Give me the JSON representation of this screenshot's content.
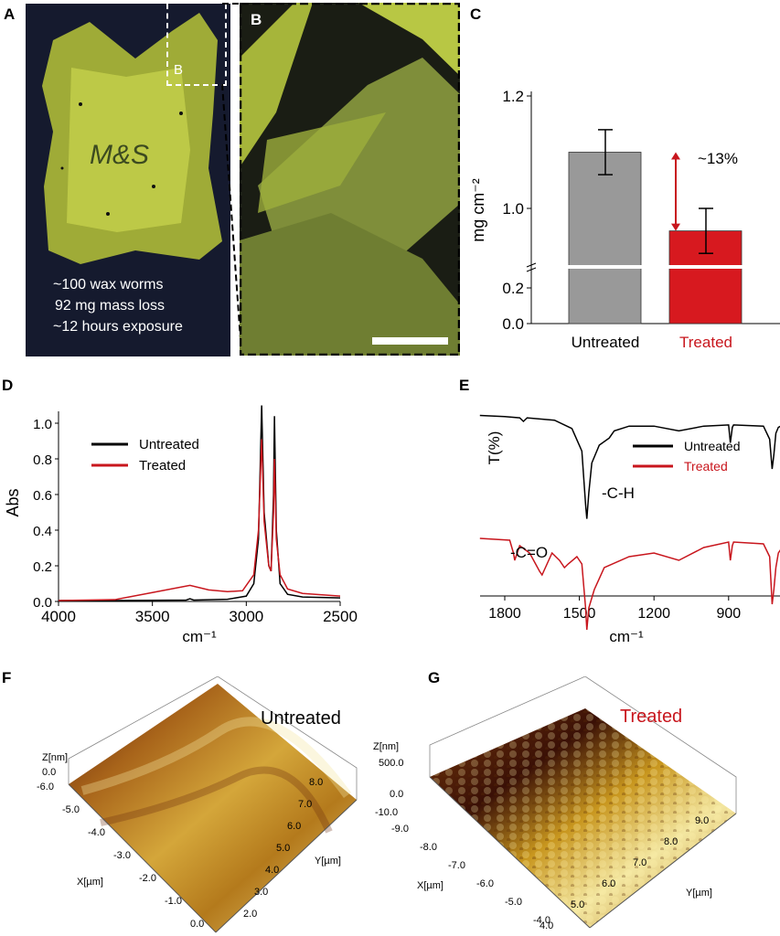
{
  "panels": {
    "A": {
      "label": "A",
      "inset_label": "B",
      "lines": [
        "~100 wax worms",
        "92 mg mass loss",
        "~12 hours exposure"
      ],
      "bag_text": "M&S"
    },
    "B": {
      "label": "B"
    },
    "C": {
      "label": "C"
    },
    "D": {
      "label": "D"
    },
    "E": {
      "label": "E"
    },
    "F": {
      "label": "F",
      "title": "Untreated",
      "z_label": "Z[nm]",
      "z_ticks": [
        "0.0"
      ],
      "x_label": "X[µm]",
      "x_ticks": [
        "-6.0",
        "-5.0",
        "-4.0",
        "-3.0",
        "-2.0",
        "-1.0",
        "0.0"
      ],
      "y_label": "Y[µm]",
      "y_ticks": [
        "2.0",
        "3.0",
        "4.0",
        "5.0",
        "6.0",
        "7.0",
        "8.0"
      ]
    },
    "G": {
      "label": "G",
      "title": "Treated",
      "z_label": "Z[nm]",
      "z_ticks": [
        "500.0",
        "0.0",
        "-10.0"
      ],
      "x_label": "X[µm]",
      "x_ticks": [
        "-9.0",
        "-8.0",
        "-7.0",
        "-6.0",
        "-5.0",
        "-4.0"
      ],
      "y_label": "Y[µm]",
      "y_ticks": [
        "4.0",
        "5.0",
        "6.0",
        "7.0",
        "8.0",
        "9.0"
      ]
    }
  },
  "colors": {
    "untreated": "#000000",
    "treated": "#c8161d",
    "bar_untreated": "#999999",
    "bar_treated": "#d7191f",
    "afm_high": "#f3e6a0",
    "afm_mid": "#c8961e",
    "afm_low": "#5a1a08"
  },
  "chart_data": [
    {
      "type": "bar",
      "panel": "C",
      "categories": [
        "Untreated",
        "Treated"
      ],
      "values": [
        1.1,
        0.96
      ],
      "errors": [
        0.04,
        0.04
      ],
      "ylabel": "mg cm⁻²",
      "yticks": [
        "0.0",
        "0.2",
        "1.0",
        "1.2"
      ],
      "ylim_lower": [
        0,
        0.3
      ],
      "ylim_upper": [
        0.9,
        1.2
      ],
      "axis_break": true,
      "annotation": "~13%"
    },
    {
      "type": "line",
      "panel": "D",
      "xlabel": "cm⁻¹",
      "ylabel": "Abs",
      "xlim": [
        4000,
        2500
      ],
      "ylim": [
        0,
        1.1
      ],
      "xticks": [
        "4000",
        "3500",
        "3000",
        "2500"
      ],
      "yticks": [
        "0.0",
        "0.2",
        "0.4",
        "0.6",
        "0.8",
        "1.0"
      ],
      "legend": "top-left",
      "series": [
        {
          "name": "Untreated",
          "x": [
            4000,
            3700,
            3320,
            3300,
            3280,
            3100,
            3000,
            2960,
            2935,
            2918,
            2905,
            2880,
            2868,
            2855,
            2850,
            2840,
            2820,
            2780,
            2700,
            2500
          ],
          "y": [
            0.005,
            0.005,
            0.008,
            0.015,
            0.008,
            0.012,
            0.03,
            0.1,
            0.35,
            1.1,
            0.5,
            0.2,
            0.17,
            0.6,
            1.04,
            0.4,
            0.1,
            0.04,
            0.025,
            0.02
          ]
        },
        {
          "name": "Treated",
          "x": [
            4000,
            3700,
            3500,
            3300,
            3200,
            3100,
            3020,
            2960,
            2935,
            2918,
            2905,
            2880,
            2868,
            2855,
            2850,
            2840,
            2820,
            2780,
            2700,
            2500
          ],
          "y": [
            0.005,
            0.01,
            0.05,
            0.09,
            0.065,
            0.055,
            0.06,
            0.15,
            0.4,
            0.91,
            0.45,
            0.2,
            0.17,
            0.5,
            0.8,
            0.35,
            0.15,
            0.07,
            0.045,
            0.03
          ]
        }
      ]
    },
    {
      "type": "line",
      "panel": "E",
      "xlabel": "cm⁻¹",
      "ylabel": "T(%)",
      "xlim": [
        1900,
        690
      ],
      "xticks": [
        "1800",
        "1500",
        "1200",
        "900"
      ],
      "legend": "top-right",
      "annotations": [
        "-C-H",
        "-C=O"
      ],
      "series": [
        {
          "name": "Untreated",
          "x": [
            1900,
            1800,
            1740,
            1725,
            1710,
            1600,
            1530,
            1490,
            1475,
            1470,
            1462,
            1450,
            1420,
            1380,
            1360,
            1300,
            1200,
            1100,
            1000,
            900,
            893,
            885,
            880,
            760,
            735,
            725,
            718,
            710,
            700,
            690
          ],
          "y": [
            95,
            94,
            93,
            90,
            93,
            91,
            84,
            65,
            20,
            8,
            30,
            55,
            70,
            76,
            82,
            86,
            86,
            82,
            86,
            87,
            72,
            85,
            87,
            86,
            75,
            50,
            62,
            80,
            85,
            86
          ]
        },
        {
          "name": "Treated",
          "x": [
            1900,
            1780,
            1765,
            1760,
            1740,
            1700,
            1660,
            1650,
            1610,
            1580,
            1560,
            1545,
            1510,
            1490,
            1475,
            1470,
            1462,
            1440,
            1400,
            1300,
            1200,
            1100,
            1000,
            900,
            893,
            885,
            880,
            760,
            735,
            725,
            718,
            710,
            700,
            690
          ],
          "y": [
            58,
            57,
            50,
            46,
            54,
            50,
            40,
            38,
            50,
            46,
            42,
            44,
            48,
            44,
            20,
            8,
            20,
            30,
            42,
            48,
            50,
            46,
            53,
            56,
            46,
            54,
            56,
            55,
            48,
            22,
            30,
            42,
            50,
            52
          ]
        }
      ]
    }
  ]
}
